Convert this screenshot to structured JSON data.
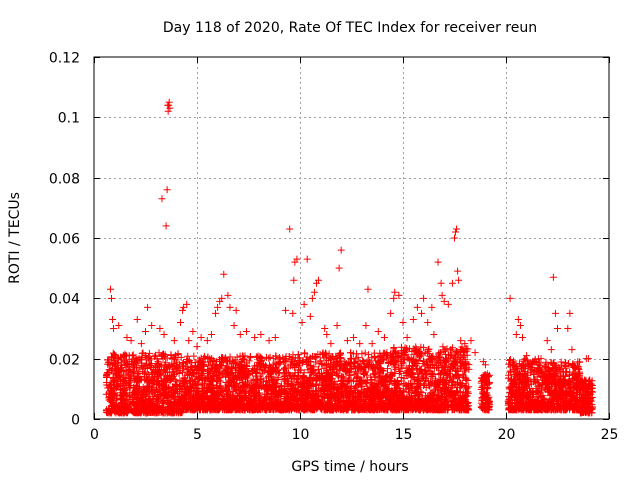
{
  "chart_data": {
    "type": "scatter",
    "title": "Day 118 of 2020, Rate Of TEC Index for receiver reun",
    "xlabel": "GPS time / hours",
    "ylabel": "ROTI / TECUs",
    "xlim": [
      0,
      25
    ],
    "ylim": [
      0,
      0.12
    ],
    "xticks": [
      0,
      5,
      10,
      15,
      20,
      25
    ],
    "xtick_labels": [
      "0",
      "5",
      "10",
      "15",
      "20",
      "25"
    ],
    "yticks": [
      0,
      0.02,
      0.04,
      0.06,
      0.08,
      0.1,
      0.12
    ],
    "ytick_labels": [
      "0",
      "0.02",
      "0.04",
      "0.06",
      "0.08",
      "0.1",
      "0.12"
    ],
    "grid": true,
    "marker": "+",
    "color": "#ff0000",
    "series": [
      {
        "name": "ROTI",
        "points": [
          [
            0.8,
            0.043
          ],
          [
            0.85,
            0.04
          ],
          [
            0.9,
            0.033
          ],
          [
            0.95,
            0.03
          ],
          [
            1.2,
            0.031
          ],
          [
            1.6,
            0.027
          ],
          [
            1.8,
            0.026
          ],
          [
            2.1,
            0.033
          ],
          [
            2.3,
            0.025
          ],
          [
            2.5,
            0.029
          ],
          [
            2.6,
            0.037
          ],
          [
            2.8,
            0.031
          ],
          [
            3.2,
            0.03
          ],
          [
            3.4,
            0.028
          ],
          [
            3.5,
            0.064
          ],
          [
            3.55,
            0.076
          ],
          [
            3.6,
            0.102
          ],
          [
            3.62,
            0.104
          ],
          [
            3.65,
            0.105
          ],
          [
            3.58,
            0.104
          ],
          [
            3.68,
            0.103
          ],
          [
            3.3,
            0.073
          ],
          [
            3.9,
            0.026
          ],
          [
            4.2,
            0.032
          ],
          [
            4.35,
            0.037
          ],
          [
            4.5,
            0.038
          ],
          [
            4.3,
            0.036
          ],
          [
            4.6,
            0.026
          ],
          [
            4.8,
            0.029
          ],
          [
            5.0,
            0.024
          ],
          [
            5.2,
            0.027
          ],
          [
            5.5,
            0.026
          ],
          [
            5.7,
            0.028
          ],
          [
            5.9,
            0.035
          ],
          [
            6.0,
            0.037
          ],
          [
            6.1,
            0.039
          ],
          [
            6.2,
            0.04
          ],
          [
            6.3,
            0.048
          ],
          [
            6.5,
            0.041
          ],
          [
            6.6,
            0.037
          ],
          [
            6.8,
            0.031
          ],
          [
            6.9,
            0.036
          ],
          [
            7.1,
            0.028
          ],
          [
            7.4,
            0.029
          ],
          [
            7.8,
            0.027
          ],
          [
            8.1,
            0.028
          ],
          [
            8.5,
            0.026
          ],
          [
            8.8,
            0.027
          ],
          [
            9.3,
            0.036
          ],
          [
            9.5,
            0.063
          ],
          [
            9.65,
            0.035
          ],
          [
            9.7,
            0.046
          ],
          [
            9.75,
            0.052
          ],
          [
            9.85,
            0.053
          ],
          [
            10.1,
            0.032
          ],
          [
            10.2,
            0.038
          ],
          [
            10.35,
            0.053
          ],
          [
            10.5,
            0.034
          ],
          [
            10.6,
            0.04
          ],
          [
            10.7,
            0.042
          ],
          [
            10.8,
            0.045
          ],
          [
            10.9,
            0.046
          ],
          [
            11.2,
            0.03
          ],
          [
            11.3,
            0.028
          ],
          [
            11.5,
            0.025
          ],
          [
            11.8,
            0.031
          ],
          [
            11.9,
            0.05
          ],
          [
            12.0,
            0.056
          ],
          [
            12.3,
            0.026
          ],
          [
            12.6,
            0.027
          ],
          [
            12.9,
            0.025
          ],
          [
            13.2,
            0.031
          ],
          [
            13.3,
            0.043
          ],
          [
            13.5,
            0.025
          ],
          [
            13.8,
            0.029
          ],
          [
            14.1,
            0.027
          ],
          [
            14.4,
            0.035
          ],
          [
            14.55,
            0.04
          ],
          [
            14.6,
            0.042
          ],
          [
            14.8,
            0.041
          ],
          [
            15.0,
            0.032
          ],
          [
            15.2,
            0.027
          ],
          [
            15.5,
            0.033
          ],
          [
            15.7,
            0.037
          ],
          [
            15.9,
            0.035
          ],
          [
            16.0,
            0.04
          ],
          [
            16.2,
            0.032
          ],
          [
            16.4,
            0.037
          ],
          [
            16.5,
            0.028
          ],
          [
            16.7,
            0.052
          ],
          [
            16.85,
            0.045
          ],
          [
            16.9,
            0.041
          ],
          [
            17.0,
            0.039
          ],
          [
            17.2,
            0.038
          ],
          [
            17.4,
            0.045
          ],
          [
            17.5,
            0.06
          ],
          [
            17.55,
            0.062
          ],
          [
            17.6,
            0.063
          ],
          [
            17.65,
            0.049
          ],
          [
            17.7,
            0.046
          ],
          [
            17.8,
            0.026
          ],
          [
            18.0,
            0.025
          ],
          [
            18.3,
            0.026
          ],
          [
            18.5,
            0.022
          ],
          [
            18.9,
            0.019
          ],
          [
            19.0,
            0.018
          ],
          [
            20.2,
            0.04
          ],
          [
            20.5,
            0.028
          ],
          [
            20.6,
            0.033
          ],
          [
            20.7,
            0.031
          ],
          [
            20.8,
            0.027
          ],
          [
            21.0,
            0.021
          ],
          [
            21.3,
            0.019
          ],
          [
            21.7,
            0.02
          ],
          [
            22.0,
            0.026
          ],
          [
            22.2,
            0.023
          ],
          [
            22.3,
            0.047
          ],
          [
            22.4,
            0.035
          ],
          [
            22.5,
            0.03
          ],
          [
            23.0,
            0.03
          ],
          [
            23.1,
            0.035
          ],
          [
            23.2,
            0.023
          ],
          [
            23.7,
            0.013
          ],
          [
            23.9,
            0.02
          ],
          [
            24.0,
            0.02
          ],
          [
            24.0,
            0.002
          ]
        ],
        "dense_bands": [
          {
            "x": [
              0.6,
              4.3
            ],
            "y": [
              0.002,
              0.022
            ]
          },
          {
            "x": [
              4.3,
              9.5
            ],
            "y": [
              0.003,
              0.021
            ]
          },
          {
            "x": [
              9.5,
              14.5
            ],
            "y": [
              0.003,
              0.022
            ]
          },
          {
            "x": [
              14.5,
              18.2
            ],
            "y": [
              0.003,
              0.024
            ]
          },
          {
            "x": [
              18.8,
              19.2
            ],
            "y": [
              0.003,
              0.015
            ]
          },
          {
            "x": [
              20.1,
              21.6
            ],
            "y": [
              0.003,
              0.02
            ]
          },
          {
            "x": [
              21.6,
              23.6
            ],
            "y": [
              0.003,
              0.019
            ]
          },
          {
            "x": [
              23.6,
              24.2
            ],
            "y": [
              0.002,
              0.013
            ]
          }
        ]
      }
    ]
  }
}
